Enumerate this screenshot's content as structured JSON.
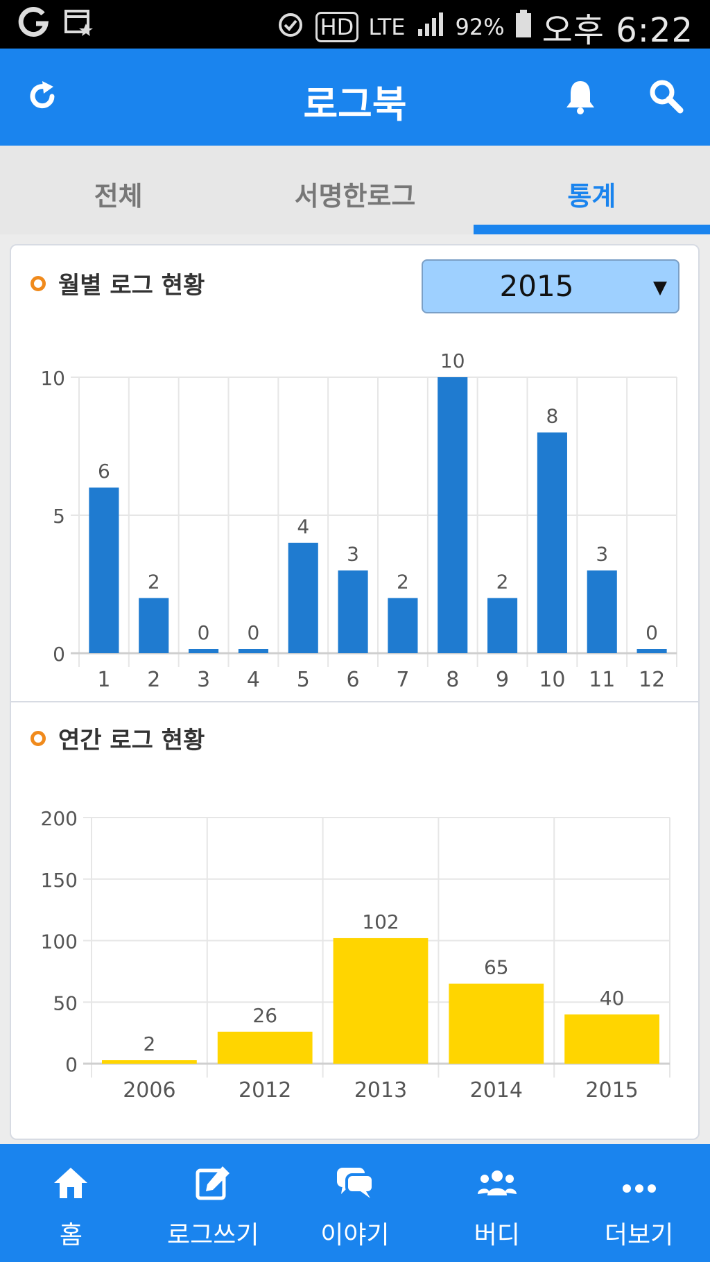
{
  "status_bar": {
    "battery": "92%",
    "network": "LTE",
    "hd_label": "HD",
    "time": "오후 6:22"
  },
  "header": {
    "title": "로그북",
    "icons": [
      "refresh-icon",
      "bell-icon",
      "search-icon"
    ]
  },
  "tabs": [
    {
      "label": "전체",
      "active": false
    },
    {
      "label": "서명한로그",
      "active": false
    },
    {
      "label": "통계",
      "active": true
    }
  ],
  "monthly": {
    "title": "월별 로그 현황",
    "year_select": {
      "value": "2015"
    }
  },
  "yearly": {
    "title": "연간 로그 현황"
  },
  "chart_data": [
    {
      "type": "bar",
      "categories": [
        "1",
        "2",
        "3",
        "4",
        "5",
        "6",
        "7",
        "8",
        "9",
        "10",
        "11",
        "12"
      ],
      "values": [
        6,
        2,
        0,
        0,
        4,
        3,
        2,
        10,
        2,
        8,
        3,
        0
      ],
      "ylim": [
        0,
        10
      ],
      "yticks": [
        0,
        5,
        10
      ],
      "color": "#1f7bd0",
      "grid": true
    },
    {
      "type": "bar",
      "categories": [
        "2006",
        "2012",
        "2013",
        "2014",
        "2015"
      ],
      "values": [
        2,
        26,
        102,
        65,
        40
      ],
      "ylim": [
        0,
        200
      ],
      "yticks": [
        0,
        50,
        100,
        150,
        200
      ],
      "color": "#ffd500",
      "grid": true
    }
  ],
  "bottom_nav": [
    {
      "label": "홈",
      "icon": "home-icon"
    },
    {
      "label": "로그쓰기",
      "icon": "edit-icon"
    },
    {
      "label": "이야기",
      "icon": "chat-icon"
    },
    {
      "label": "버디",
      "icon": "buddies-icon"
    },
    {
      "label": "더보기",
      "icon": "more-icon"
    }
  ]
}
